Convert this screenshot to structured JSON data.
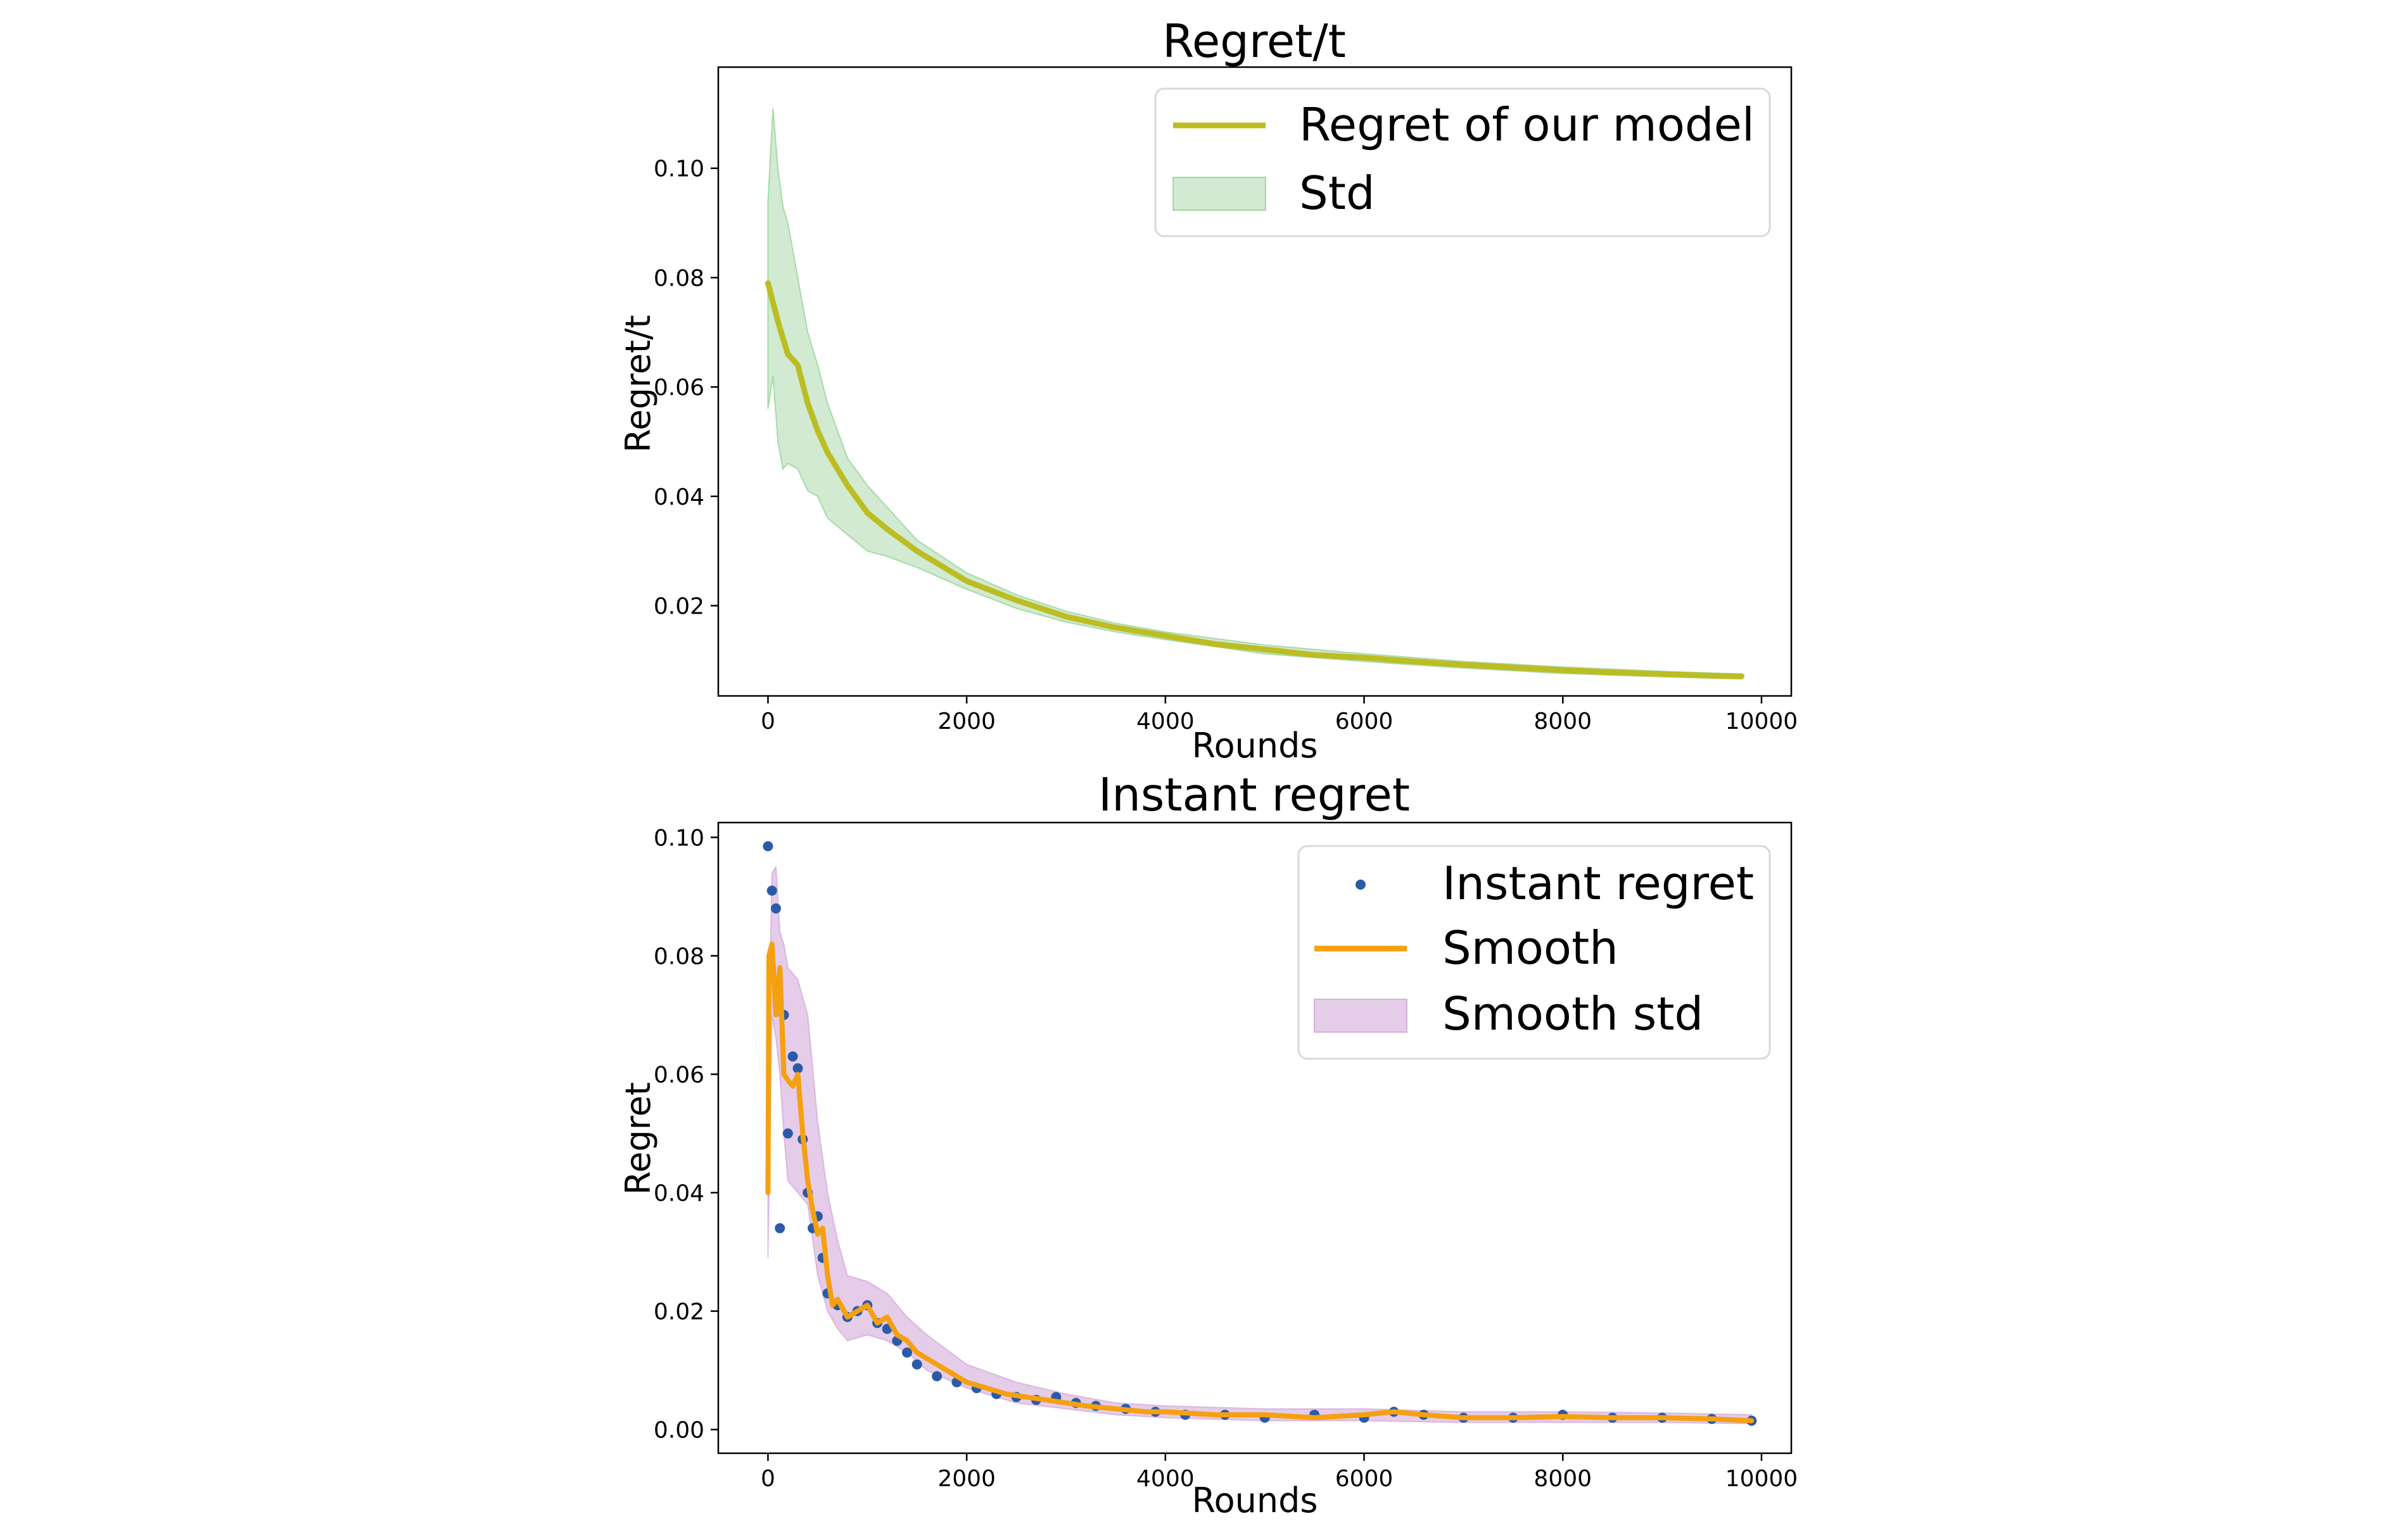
{
  "chart_data": [
    {
      "type": "line",
      "title": "Regret/t",
      "xlabel": "Rounds",
      "ylabel": "Regret/t",
      "xlim": [
        -500,
        10300
      ],
      "ylim": [
        0.0035,
        0.1185
      ],
      "xticks": [
        0,
        2000,
        4000,
        6000,
        8000,
        10000
      ],
      "yticks": [
        0.02,
        0.04,
        0.06,
        0.08,
        0.1
      ],
      "xtick_labels": [
        "0",
        "2000",
        "4000",
        "6000",
        "8000",
        "10000"
      ],
      "ytick_labels": [
        "0.02",
        "0.04",
        "0.06",
        "0.08",
        "0.10"
      ],
      "legend_position": "top-right",
      "colors": {
        "line": "#bcbd22",
        "band_fill": "#2ca02c",
        "band_edge": "#7fc97f"
      },
      "series": [
        {
          "name": "Regret of our model",
          "kind": "line",
          "x": [
            0,
            100,
            200,
            300,
            400,
            500,
            600,
            800,
            1000,
            1200,
            1500,
            2000,
            2500,
            3000,
            3500,
            4000,
            4500,
            5000,
            5500,
            6000,
            6500,
            7000,
            7500,
            8000,
            8500,
            9000,
            9500,
            9800
          ],
          "y": [
            0.079,
            0.072,
            0.066,
            0.064,
            0.057,
            0.052,
            0.048,
            0.042,
            0.037,
            0.034,
            0.03,
            0.0245,
            0.021,
            0.018,
            0.016,
            0.0145,
            0.013,
            0.012,
            0.011,
            0.0105,
            0.0098,
            0.0092,
            0.0087,
            0.0082,
            0.0078,
            0.0075,
            0.0072,
            0.0071
          ]
        },
        {
          "name": "Std",
          "kind": "band",
          "x": [
            0,
            50,
            100,
            150,
            200,
            300,
            400,
            500,
            600,
            800,
            1000,
            1200,
            1500,
            2000,
            2500,
            3000,
            3500,
            4000,
            5000,
            6000,
            7000,
            8000,
            9000,
            9800
          ],
          "upper": [
            0.094,
            0.111,
            0.1,
            0.093,
            0.09,
            0.08,
            0.07,
            0.064,
            0.057,
            0.047,
            0.042,
            0.038,
            0.032,
            0.026,
            0.022,
            0.019,
            0.0168,
            0.0152,
            0.0128,
            0.0112,
            0.0098,
            0.0088,
            0.008,
            0.0075
          ],
          "lower": [
            0.056,
            0.062,
            0.05,
            0.045,
            0.046,
            0.045,
            0.041,
            0.04,
            0.036,
            0.033,
            0.03,
            0.029,
            0.027,
            0.023,
            0.0195,
            0.017,
            0.0152,
            0.0138,
            0.0112,
            0.0098,
            0.0086,
            0.0076,
            0.007,
            0.0066
          ]
        }
      ]
    },
    {
      "type": "scatter",
      "title": "Instant regret",
      "xlabel": "Rounds",
      "ylabel": "Regret",
      "xlim": [
        -500,
        10300
      ],
      "ylim": [
        -0.004,
        0.1025
      ],
      "xticks": [
        0,
        2000,
        4000,
        6000,
        8000,
        10000
      ],
      "yticks": [
        0.0,
        0.02,
        0.04,
        0.06,
        0.08,
        0.1
      ],
      "xtick_labels": [
        "0",
        "2000",
        "4000",
        "6000",
        "8000",
        "10000"
      ],
      "ytick_labels": [
        "0.00",
        "0.02",
        "0.04",
        "0.06",
        "0.08",
        "0.10"
      ],
      "legend_position": "top-right",
      "colors": {
        "points": "#2b5ba8",
        "smooth": "#f5a00f",
        "band_fill": "#c68fcf"
      },
      "series": [
        {
          "name": "Instant regret",
          "kind": "points",
          "x": [
            0,
            40,
            80,
            120,
            160,
            200,
            250,
            300,
            350,
            400,
            450,
            500,
            550,
            600,
            700,
            800,
            900,
            1000,
            1100,
            1200,
            1300,
            1400,
            1500,
            1700,
            1900,
            2100,
            2300,
            2500,
            2700,
            2900,
            3100,
            3300,
            3600,
            3900,
            4200,
            4600,
            5000,
            5500,
            6000,
            6300,
            6600,
            7000,
            7500,
            8000,
            8500,
            9000,
            9500,
            9900
          ],
          "y": [
            0.0985,
            0.091,
            0.088,
            0.034,
            0.07,
            0.05,
            0.063,
            0.061,
            0.049,
            0.04,
            0.034,
            0.036,
            0.029,
            0.023,
            0.021,
            0.019,
            0.02,
            0.021,
            0.018,
            0.017,
            0.015,
            0.013,
            0.011,
            0.009,
            0.008,
            0.007,
            0.006,
            0.0055,
            0.005,
            0.0055,
            0.0045,
            0.004,
            0.0035,
            0.003,
            0.0025,
            0.0025,
            0.002,
            0.0025,
            0.002,
            0.003,
            0.0025,
            0.002,
            0.002,
            0.0025,
            0.002,
            0.002,
            0.0018,
            0.0015
          ]
        },
        {
          "name": "Smooth",
          "kind": "line",
          "x": [
            0,
            10,
            40,
            80,
            120,
            160,
            200,
            250,
            300,
            350,
            400,
            450,
            500,
            550,
            600,
            650,
            700,
            800,
            900,
            1000,
            1100,
            1200,
            1300,
            1400,
            1500,
            1600,
            1800,
            2000,
            2200,
            2400,
            2600,
            2800,
            3000,
            3200,
            3500,
            3800,
            4000,
            4500,
            5000,
            5500,
            6000,
            6300,
            6600,
            7000,
            7500,
            8000,
            8500,
            9000,
            9500,
            9900
          ],
          "y": [
            0.04,
            0.08,
            0.082,
            0.07,
            0.078,
            0.06,
            0.059,
            0.058,
            0.06,
            0.05,
            0.042,
            0.037,
            0.033,
            0.034,
            0.026,
            0.021,
            0.022,
            0.019,
            0.02,
            0.021,
            0.018,
            0.019,
            0.016,
            0.015,
            0.013,
            0.012,
            0.01,
            0.008,
            0.007,
            0.006,
            0.0055,
            0.005,
            0.0045,
            0.004,
            0.0035,
            0.003,
            0.003,
            0.0025,
            0.0025,
            0.002,
            0.0025,
            0.003,
            0.0025,
            0.002,
            0.002,
            0.0022,
            0.002,
            0.002,
            0.0018,
            0.0015
          ]
        },
        {
          "name": "Smooth std",
          "kind": "band",
          "x": [
            0,
            40,
            80,
            120,
            160,
            200,
            300,
            400,
            500,
            600,
            700,
            800,
            1000,
            1200,
            1400,
            1600,
            2000,
            2500,
            3000,
            3500,
            4000,
            5000,
            6000,
            7000,
            8000,
            9000,
            9900
          ],
          "upper": [
            0.06,
            0.094,
            0.095,
            0.084,
            0.082,
            0.078,
            0.076,
            0.07,
            0.052,
            0.04,
            0.032,
            0.026,
            0.025,
            0.023,
            0.019,
            0.016,
            0.011,
            0.008,
            0.006,
            0.0045,
            0.004,
            0.0035,
            0.0035,
            0.003,
            0.003,
            0.0028,
            0.0025
          ],
          "lower": [
            0.029,
            0.07,
            0.066,
            0.06,
            0.05,
            0.042,
            0.04,
            0.038,
            0.026,
            0.02,
            0.017,
            0.015,
            0.016,
            0.015,
            0.013,
            0.01,
            0.007,
            0.0045,
            0.0035,
            0.0025,
            0.002,
            0.0015,
            0.0015,
            0.0012,
            0.0012,
            0.0012,
            0.001
          ]
        }
      ]
    }
  ]
}
